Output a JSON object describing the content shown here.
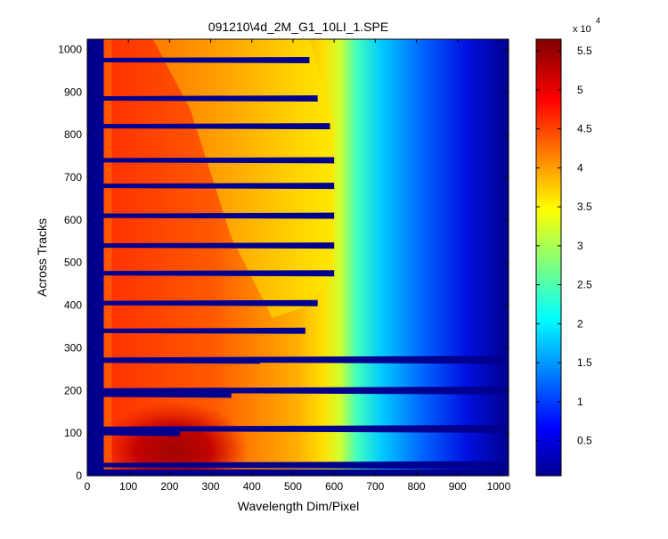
{
  "chart_data": {
    "type": "heatmap",
    "title": "091210\\4d_2M_G1_10LI_1.SPE",
    "xlabel": "Wavelength Dim/Pixel",
    "ylabel": "Across Tracks",
    "xlim": [
      0,
      1024
    ],
    "ylim": [
      0,
      1024
    ],
    "x_ticks": [
      0,
      100,
      200,
      300,
      400,
      500,
      600,
      700,
      800,
      900,
      1000
    ],
    "y_ticks": [
      0,
      100,
      200,
      300,
      400,
      500,
      600,
      700,
      800,
      900,
      1000
    ],
    "colormap": "jet",
    "colorbar": {
      "min": 500,
      "max": 56500,
      "multiplier_label": "x 10",
      "multiplier_exponent": "4",
      "ticks": [
        0.5,
        1,
        1.5,
        2,
        2.5,
        3,
        3.5,
        4,
        4.5,
        5,
        5.5
      ]
    },
    "gap_tracks": [
      {
        "y": 25,
        "end_x": 1024
      },
      {
        "y": 100,
        "end_x": 225
      },
      {
        "y": 110,
        "end_x": 1024
      },
      {
        "y": 190,
        "end_x": 350
      },
      {
        "y": 200,
        "end_x": 1024
      },
      {
        "y": 270,
        "end_x": 420
      },
      {
        "y": 272,
        "end_x": 1024
      },
      {
        "y": 340,
        "end_x": 530
      },
      {
        "y": 405,
        "end_x": 560
      },
      {
        "y": 475,
        "end_x": 600
      },
      {
        "y": 540,
        "end_x": 600
      },
      {
        "y": 610,
        "end_x": 600
      },
      {
        "y": 680,
        "end_x": 600
      },
      {
        "y": 740,
        "end_x": 600
      },
      {
        "y": 820,
        "end_x": 590
      },
      {
        "y": 885,
        "end_x": 560
      },
      {
        "y": 975,
        "end_x": 540
      }
    ]
  }
}
